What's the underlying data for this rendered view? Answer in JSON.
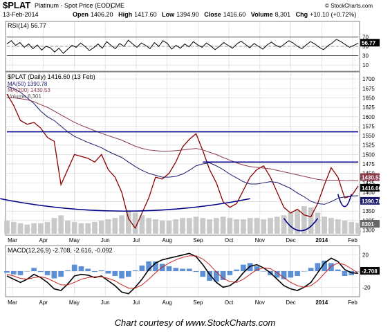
{
  "header": {
    "symbol": "$PLAT",
    "name": "Platinum  - Spot Price (EOD)",
    "exchange": "CME",
    "date": "13-Feb-2014",
    "watermark": "© StockCharts.com",
    "quote": {
      "open_label": "Open",
      "open": "1406.20",
      "high_label": "High",
      "high": "1417.60",
      "low_label": "Low",
      "low": "1394.90",
      "close_label": "Close",
      "close": "1416.60",
      "volume_label": "Volume",
      "volume": "8,301",
      "chg_label": "Chg",
      "chg": "+10.10 (+0.72%)"
    }
  },
  "caption": "Chart courtesy of www.StockCharts.com",
  "colors": {
    "price": "#8b0000",
    "ma50": "#1a1a6e",
    "ma200": "#8b3a4a",
    "volume": "#c9c9c9",
    "resistance": "#00008b",
    "curve": "#00008b",
    "rsi": "#000000",
    "macd_line": "#000000",
    "signal_line": "#cc2222",
    "histogram": "#5b8fd6",
    "grid": "#d9d9d9",
    "label_bg": "#000000"
  },
  "chart_data": [
    {
      "type": "line",
      "panel": "rsi",
      "legend": "RSI(14) 56.77",
      "ylim": [
        0,
        100
      ],
      "y_ticks": [
        "70",
        "50",
        "30",
        "10"
      ],
      "last_value_label": "56.77",
      "levels": [
        70,
        30
      ],
      "values": [
        55,
        62,
        52,
        58,
        48,
        55,
        45,
        53,
        42,
        50,
        47,
        38,
        46,
        35,
        44,
        52,
        48,
        57,
        50,
        41,
        47,
        55,
        46,
        60,
        52,
        45,
        56,
        50,
        63,
        55,
        48,
        57,
        52,
        45,
        58,
        50,
        62,
        56,
        44,
        52,
        46,
        55,
        49,
        60,
        53,
        48,
        57,
        51,
        43,
        50,
        58,
        52,
        46,
        55,
        61,
        54,
        47,
        56,
        50,
        44,
        53,
        59,
        52,
        48,
        55,
        62,
        57,
        50,
        45,
        53,
        60,
        55,
        48,
        43,
        51,
        57,
        65,
        60,
        54,
        48,
        52,
        56.77
      ],
      "grid": true
    },
    {
      "type": "line",
      "panel": "price",
      "legend": {
        "title": "$PLAT (Daily) 1416.60 (13 Feb)",
        "entries": [
          "MA(50) 1390.78",
          "MA(200) 1430.53",
          "Volume 8,301"
        ]
      },
      "ylim": [
        1290,
        1715
      ],
      "y_ticks": [
        "1700",
        "1675",
        "1650",
        "1625",
        "1600",
        "1575",
        "1550",
        "1525",
        "1500",
        "1475",
        "1450",
        "1425",
        "1400",
        "1375",
        "1350",
        "1325",
        "1300"
      ],
      "last_value_labels": [
        "1430.53",
        "1416.60",
        "1390.78",
        "8301"
      ],
      "x_ticks": [
        "Mar",
        "Apr",
        "May",
        "Jun",
        "Jul",
        "Aug",
        "Sep",
        "Oct",
        "Nov",
        "Dec",
        "2014",
        "Feb"
      ],
      "x": [
        "Feb-18",
        "Feb-25",
        "Mar-04",
        "Mar-11",
        "Mar-18",
        "Mar-25",
        "Apr-01",
        "Apr-08",
        "Apr-15",
        "Apr-22",
        "Apr-29",
        "May-06",
        "May-13",
        "May-20",
        "May-27",
        "Jun-03",
        "Jun-10",
        "Jun-17",
        "Jun-24",
        "Jul-01",
        "Jul-08",
        "Jul-15",
        "Jul-22",
        "Jul-29",
        "Aug-05",
        "Aug-12",
        "Aug-19",
        "Aug-26",
        "Sep-02",
        "Sep-09",
        "Sep-16",
        "Sep-23",
        "Sep-30",
        "Oct-07",
        "Oct-14",
        "Oct-21",
        "Oct-28",
        "Nov-04",
        "Nov-11",
        "Nov-18",
        "Nov-25",
        "Dec-02",
        "Dec-09",
        "Dec-16",
        "Dec-23",
        "Dec-30",
        "Jan-06",
        "Jan-13",
        "Jan-20",
        "Jan-27",
        "Feb-03",
        "Feb-10",
        "Feb-13"
      ],
      "series": [
        {
          "name": "$PLAT",
          "values": [
            1660,
            1630,
            1590,
            1580,
            1585,
            1570,
            1545,
            1535,
            1420,
            1460,
            1500,
            1495,
            1490,
            1480,
            1500,
            1460,
            1440,
            1400,
            1330,
            1305,
            1345,
            1385,
            1440,
            1435,
            1450,
            1480,
            1520,
            1540,
            1555,
            1510,
            1460,
            1425,
            1375,
            1360,
            1370,
            1405,
            1440,
            1460,
            1470,
            1440,
            1400,
            1360,
            1345,
            1355,
            1340,
            1335,
            1370,
            1420,
            1465,
            1440,
            1385,
            1390,
            1416.6
          ]
        },
        {
          "name": "MA(50)",
          "values": [
            1680,
            1675,
            1665,
            1650,
            1635,
            1615,
            1600,
            1590,
            1575,
            1560,
            1548,
            1540,
            1532,
            1525,
            1518,
            1508,
            1500,
            1492,
            1480,
            1468,
            1458,
            1450,
            1445,
            1440,
            1440,
            1442,
            1448,
            1458,
            1470,
            1475,
            1478,
            1470,
            1460,
            1448,
            1438,
            1428,
            1422,
            1422,
            1425,
            1428,
            1426,
            1418,
            1410,
            1398,
            1388,
            1376,
            1370,
            1368,
            1375,
            1384,
            1388,
            1390,
            1390.78
          ]
        },
        {
          "name": "MA(200)",
          "values": [
            1650,
            1650,
            1648,
            1645,
            1640,
            1632,
            1625,
            1615,
            1605,
            1595,
            1585,
            1577,
            1570,
            1563,
            1556,
            1550,
            1544,
            1538,
            1530,
            1522,
            1516,
            1512,
            1510,
            1509,
            1509,
            1510,
            1512,
            1514,
            1516,
            1512,
            1506,
            1500,
            1492,
            1485,
            1478,
            1472,
            1468,
            1466,
            1464,
            1462,
            1458,
            1454,
            1450,
            1446,
            1442,
            1438,
            1434,
            1432,
            1432,
            1432,
            1431,
            1430.8,
            1430.53
          ]
        }
      ],
      "volume_values": [
        10,
        9,
        8,
        7,
        8,
        8,
        9,
        12,
        14,
        10,
        9,
        8,
        8,
        9,
        10,
        11,
        12,
        14,
        18,
        16,
        14,
        12,
        11,
        10,
        10,
        11,
        12,
        12,
        13,
        12,
        11,
        12,
        13,
        12,
        11,
        11,
        12,
        12,
        11,
        12,
        13,
        14,
        16,
        18,
        21,
        20,
        16,
        13,
        12,
        11,
        10,
        9,
        8.3
      ],
      "annotations": {
        "resistance_levels": [
          1560,
          1480
        ],
        "rounding_bottoms": [
          {
            "start": "Oct-01",
            "end": "Oct-28",
            "low": 1350
          },
          {
            "start": "Dec-02",
            "end": "Jan-06",
            "low": 1298
          },
          {
            "start": "Jan-27",
            "end": "Feb-10",
            "low": 1362
          }
        ]
      },
      "grid": true
    },
    {
      "type": "line",
      "panel": "macd",
      "legend": "MACD(12,26,9) -2.708, -2.616, -0.092",
      "ylim": [
        -30,
        30
      ],
      "y_ticks": [
        "20",
        "0",
        "-20"
      ],
      "last_value_label": "-2.708",
      "x_ticks": [
        "Mar",
        "Apr",
        "May",
        "Jun",
        "Jul",
        "Aug",
        "Sep",
        "Oct",
        "Nov",
        "Dec",
        "2014",
        "Feb"
      ],
      "series": [
        {
          "name": "MACD",
          "values": [
            -6,
            -10,
            -14,
            -10,
            -4,
            -8,
            -14,
            -22,
            -24,
            -16,
            -6,
            -4,
            -5,
            -8,
            -6,
            -12,
            -18,
            -26,
            -28,
            -20,
            -10,
            2,
            10,
            14,
            16,
            18,
            20,
            22,
            18,
            8,
            -4,
            -14,
            -20,
            -18,
            -12,
            -2,
            6,
            8,
            4,
            -2,
            -10,
            -18,
            -22,
            -24,
            -20,
            -14,
            -2,
            10,
            16,
            12,
            2,
            -2,
            -2.708
          ]
        },
        {
          "name": "Signal",
          "values": [
            -4,
            -6,
            -9,
            -10,
            -8,
            -7,
            -9,
            -13,
            -17,
            -17,
            -14,
            -10,
            -8,
            -7,
            -7,
            -9,
            -12,
            -17,
            -21,
            -21,
            -17,
            -10,
            -2,
            5,
            10,
            14,
            17,
            19,
            19,
            15,
            8,
            -1,
            -9,
            -13,
            -14,
            -10,
            -4,
            2,
            4,
            3,
            -2,
            -8,
            -14,
            -18,
            -20,
            -18,
            -12,
            -3,
            6,
            10,
            8,
            3,
            -2.616
          ]
        }
      ],
      "histogram": [
        -2,
        -4,
        -5,
        0,
        4,
        -1,
        -5,
        -9,
        -7,
        1,
        8,
        6,
        3,
        -1,
        1,
        -3,
        -6,
        -9,
        -7,
        1,
        7,
        12,
        12,
        9,
        6,
        4,
        3,
        3,
        -1,
        -7,
        -12,
        -13,
        -11,
        -5,
        2,
        8,
        10,
        6,
        0,
        -5,
        -8,
        -10,
        -8,
        -6,
        0,
        4,
        10,
        13,
        10,
        2,
        -6,
        -5,
        -0.092
      ],
      "grid": true
    }
  ]
}
